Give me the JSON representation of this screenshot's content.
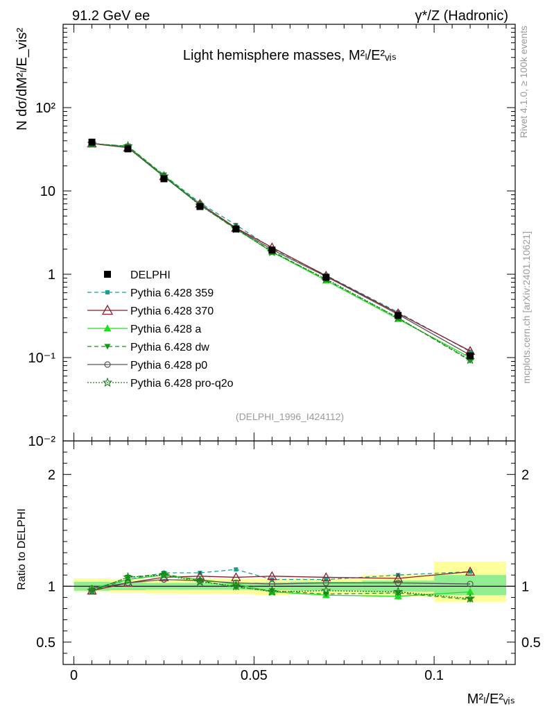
{
  "header": {
    "left": "91.2 GeV ee",
    "right": "γ*/Z (Hadronic)"
  },
  "plot_title": "Light hemisphere masses, M²ₗ/E²ᵥᵢₛ",
  "ylabel_main": "N  dσ/dM²ₗ/E_vis²",
  "xlabel": "M²ₗ/E²ᵥᵢₛ",
  "ylabel_ratio": "Ratio to DELPHI",
  "side_text": {
    "rivet": "Rivet 4.1.0, ≥ 100k events",
    "mcplots": "mcplots.cern.ch [arXiv:2401.10621]"
  },
  "analysis_id": "(DELPHI_1996_I424112)",
  "colors": {
    "data": "#000000",
    "p359": "#18a08c",
    "p370": "#8b1a2b",
    "pa": "#22dd22",
    "pdw": "#129a12",
    "pp0": "#555555",
    "pq2o": "#1e7a1e",
    "band_inner": "#90ee90",
    "band_outer": "#ffff99"
  },
  "chart_data": [
    {
      "type": "line",
      "title": "Light hemisphere masses",
      "xscale": "linear",
      "yscale": "log",
      "xlim": [
        -0.003,
        0.1225
      ],
      "ylim": [
        0.01,
        1000
      ],
      "x_ticks": [
        0,
        0.05,
        0.1
      ],
      "x_tick_labels": [
        "0",
        "0.05",
        "0.1"
      ],
      "y_tick_labels": [
        "10⁻²",
        "10⁻¹",
        "1",
        "10",
        "10²"
      ],
      "x": [
        0.005,
        0.015,
        0.025,
        0.035,
        0.045,
        0.055,
        0.07,
        0.09,
        0.11
      ],
      "series": [
        {
          "name": "DELPHI",
          "values": [
            38.5,
            32,
            14,
            6.5,
            3.5,
            1.95,
            0.92,
            0.32,
            0.105
          ]
        },
        {
          "name": "Pythia 6.428 359",
          "values": [
            37,
            34,
            15.5,
            7.2,
            3.9,
            2.05,
            0.97,
            0.35,
            0.118
          ]
        },
        {
          "name": "Pythia 6.428 370",
          "values": [
            37,
            33,
            15,
            7,
            3.6,
            2.1,
            0.96,
            0.34,
            0.12
          ]
        },
        {
          "name": "Pythia 6.428 a",
          "values": [
            37,
            34,
            15.3,
            6.9,
            3.5,
            1.85,
            0.84,
            0.29,
            0.1
          ]
        },
        {
          "name": "Pythia 6.428 dw",
          "values": [
            37,
            34.5,
            15.5,
            6.8,
            3.45,
            1.9,
            0.86,
            0.3,
            0.092
          ]
        },
        {
          "name": "Pythia 6.428 p0",
          "values": [
            37.5,
            33,
            14.8,
            6.8,
            3.55,
            1.98,
            0.94,
            0.33,
            0.107
          ]
        },
        {
          "name": "Pythia 6.428 pro-q2o",
          "values": [
            37,
            34.5,
            15,
            6.7,
            3.5,
            1.85,
            0.88,
            0.3,
            0.094
          ]
        }
      ]
    },
    {
      "type": "line",
      "title": "Ratio to DELPHI",
      "ylim": [
        0.3,
        2.3
      ],
      "y_ticks": [
        0.5,
        1,
        2
      ],
      "y_tick_labels": [
        "0.5",
        "1",
        "2"
      ],
      "x": [
        0.005,
        0.015,
        0.025,
        0.035,
        0.045,
        0.055,
        0.07,
        0.09,
        0.11
      ],
      "bands": [
        {
          "x_low": 0,
          "x_high": 0.01,
          "inner": [
            0.96,
            1.04
          ],
          "outer": [
            0.95,
            1.07
          ]
        },
        {
          "x_low": 0.01,
          "x_high": 0.02,
          "inner": [
            0.965,
            1.035
          ],
          "outer": [
            0.94,
            1.06
          ]
        },
        {
          "x_low": 0.02,
          "x_high": 0.03,
          "inner": [
            0.97,
            1.03
          ],
          "outer": [
            0.935,
            1.06
          ]
        },
        {
          "x_low": 0.03,
          "x_high": 0.04,
          "inner": [
            0.97,
            1.03
          ],
          "outer": [
            0.93,
            1.07
          ]
        },
        {
          "x_low": 0.04,
          "x_high": 0.05,
          "inner": [
            0.97,
            1.03
          ],
          "outer": [
            0.93,
            1.07
          ]
        },
        {
          "x_low": 0.05,
          "x_high": 0.06,
          "inner": [
            0.965,
            1.035
          ],
          "outer": [
            0.92,
            1.07
          ]
        },
        {
          "x_low": 0.06,
          "x_high": 0.08,
          "inner": [
            0.96,
            1.04
          ],
          "outer": [
            0.93,
            1.07
          ]
        },
        {
          "x_low": 0.08,
          "x_high": 0.1,
          "inner": [
            0.95,
            1.05
          ],
          "outer": [
            0.91,
            1.1
          ]
        },
        {
          "x_low": 0.1,
          "x_high": 0.12,
          "inner": [
            0.92,
            1.1
          ],
          "outer": [
            0.86,
            1.22
          ]
        }
      ],
      "series": [
        {
          "name": "Pythia 6.428 359",
          "values": [
            0.96,
            1.06,
            1.12,
            1.12,
            1.15,
            1.06,
            1.06,
            1.1,
            1.13
          ]
        },
        {
          "name": "Pythia 6.428 370",
          "values": [
            0.96,
            1.03,
            1.08,
            1.09,
            1.08,
            1.09,
            1.08,
            1.07,
            1.13
          ]
        },
        {
          "name": "Pythia 6.428 a",
          "values": [
            0.98,
            1.06,
            1.1,
            1.06,
            1.02,
            0.95,
            0.92,
            0.91,
            0.95
          ]
        },
        {
          "name": "Pythia 6.428 dw",
          "values": [
            0.96,
            1.08,
            1.11,
            1.05,
            0.99,
            0.96,
            0.93,
            0.94,
            0.88
          ]
        },
        {
          "name": "Pythia 6.428 p0",
          "values": [
            0.98,
            1.03,
            1.06,
            1.05,
            1.03,
            1.02,
            1.03,
            1.03,
            1.02
          ]
        },
        {
          "name": "Pythia 6.428 pro-q2o",
          "values": [
            0.96,
            1.08,
            1.1,
            1.04,
            1.0,
            0.95,
            0.96,
            0.95,
            0.89
          ]
        }
      ]
    }
  ]
}
